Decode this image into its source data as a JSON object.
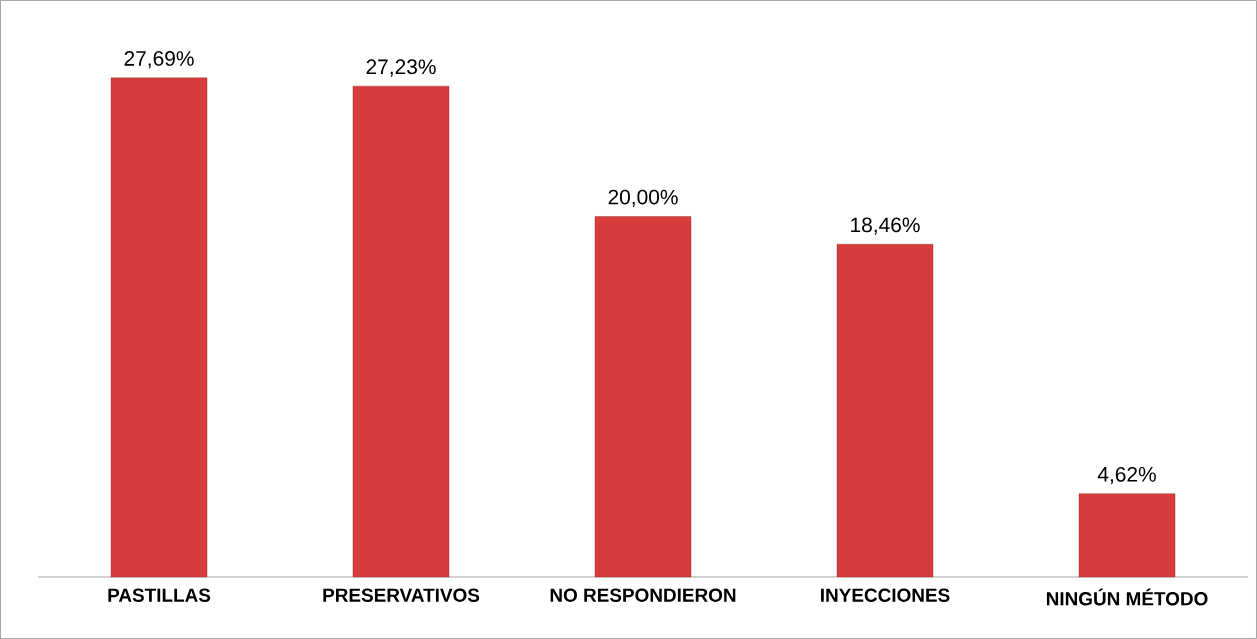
{
  "chart_data": {
    "type": "bar",
    "categories": [
      "PASTILLAS",
      "PRESERVATIVOS",
      "NO RESPONDIERON",
      "INYECCIONES",
      "NINGÚN MÉTODO"
    ],
    "values": [
      27.69,
      27.23,
      20.0,
      18.46,
      4.62
    ],
    "value_labels": [
      "27,69%",
      "27,23%",
      "20,00%",
      "18,46%",
      "4,62%"
    ],
    "color": "#d63c3c"
  }
}
